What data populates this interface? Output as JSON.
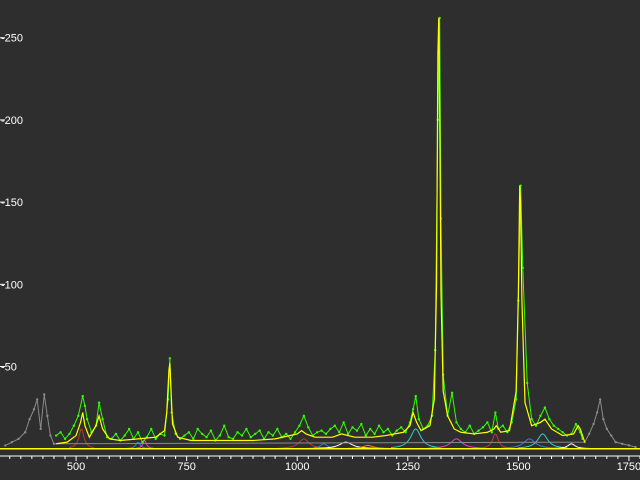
{
  "chart_data": {
    "type": "line",
    "title": "",
    "xlabel": "",
    "ylabel": "",
    "xlim": [
      328,
      1775
    ],
    "ylim": [
      -2,
      262
    ],
    "xticks": [
      500,
      750,
      1000,
      1250,
      1500,
      1750
    ],
    "xtick_labels": [
      "500",
      "750",
      "1000",
      "1250",
      "1500",
      "1750"
    ],
    "yticks": [
      250,
      200,
      150,
      100,
      50
    ],
    "ytick_labels": [
      "-250",
      "-200",
      "-150",
      "-100",
      "-50"
    ],
    "grid": false,
    "background": "#2e2e2e",
    "baseline": 0,
    "baseline_color": "#ffff00",
    "series": [
      {
        "role": "excluded-data",
        "color": "#8a8a8a",
        "x": [
          340,
          355,
          370,
          385,
          395,
          405,
          412,
          420,
          428,
          435,
          442,
          450,
          1650,
          1660,
          1670,
          1678,
          1685,
          1692,
          1700,
          1710,
          1720,
          1735,
          1750,
          1765
        ],
        "y": [
          2,
          4,
          6,
          10,
          18,
          24,
          30,
          12,
          33,
          20,
          8,
          3,
          4,
          9,
          15,
          22,
          30,
          18,
          12,
          8,
          4,
          3,
          2,
          1
        ]
      },
      {
        "role": "data",
        "color": "#33ff00",
        "x": [
          455,
          465,
          475,
          485,
          495,
          505,
          515,
          520,
          525,
          535,
          545,
          552,
          560,
          570,
          580,
          590,
          600,
          610,
          620,
          630,
          640,
          650,
          660,
          670,
          680,
          690,
          700,
          708,
          712,
          716,
          725,
          735,
          745,
          755,
          765,
          775,
          785,
          795,
          805,
          815,
          825,
          835,
          845,
          855,
          865,
          875,
          885,
          895,
          905,
          915,
          925,
          935,
          945,
          955,
          965,
          975,
          985,
          995,
          1005,
          1015,
          1025,
          1035,
          1045,
          1055,
          1065,
          1075,
          1085,
          1095,
          1105,
          1115,
          1125,
          1135,
          1145,
          1155,
          1165,
          1175,
          1185,
          1195,
          1205,
          1215,
          1225,
          1235,
          1245,
          1255,
          1262,
          1268,
          1275,
          1285,
          1295,
          1305,
          1312,
          1318,
          1322,
          1325,
          1330,
          1340,
          1350,
          1360,
          1370,
          1380,
          1390,
          1400,
          1410,
          1420,
          1430,
          1440,
          1448,
          1455,
          1465,
          1475,
          1485,
          1495,
          1500,
          1505,
          1510,
          1520,
          1530,
          1540,
          1550,
          1560,
          1570,
          1580,
          1590,
          1600,
          1610,
          1620,
          1630,
          1640,
          1645
        ],
        "y": [
          8,
          10,
          6,
          9,
          14,
          20,
          32,
          26,
          18,
          10,
          14,
          28,
          18,
          7,
          6,
          9,
          5,
          8,
          12,
          6,
          10,
          4,
          7,
          12,
          6,
          9,
          8,
          30,
          55,
          22,
          9,
          6,
          8,
          10,
          6,
          12,
          9,
          7,
          11,
          5,
          8,
          14,
          7,
          6,
          10,
          8,
          12,
          7,
          9,
          11,
          6,
          10,
          8,
          12,
          7,
          9,
          6,
          10,
          14,
          20,
          13,
          8,
          10,
          11,
          9,
          12,
          14,
          10,
          16,
          9,
          13,
          11,
          15,
          8,
          12,
          9,
          14,
          10,
          12,
          8,
          11,
          13,
          10,
          16,
          24,
          32,
          18,
          12,
          14,
          20,
          60,
          200,
          262,
          140,
          45,
          20,
          34,
          16,
          12,
          10,
          14,
          9,
          11,
          13,
          16,
          10,
          22,
          12,
          14,
          10,
          16,
          30,
          90,
          160,
          110,
          40,
          18,
          14,
          20,
          25,
          18,
          14,
          12,
          10,
          8,
          9,
          15,
          10,
          6
        ]
      },
      {
        "role": "fit",
        "color": "#ffff00",
        "x": [
          455,
          480,
          500,
          510,
          515,
          520,
          530,
          545,
          552,
          560,
          575,
          600,
          640,
          680,
          700,
          705,
          710,
          712,
          714,
          718,
          730,
          760,
          800,
          850,
          900,
          950,
          1000,
          1010,
          1020,
          1040,
          1080,
          1100,
          1130,
          1170,
          1200,
          1240,
          1255,
          1262,
          1270,
          1280,
          1300,
          1310,
          1315,
          1318,
          1320,
          1322,
          1325,
          1330,
          1340,
          1355,
          1370,
          1400,
          1430,
          1445,
          1450,
          1460,
          1480,
          1495,
          1500,
          1503,
          1505,
          1508,
          1515,
          1530,
          1550,
          1560,
          1575,
          1600,
          1625,
          1635,
          1640,
          1650
        ],
        "y": [
          3,
          4,
          8,
          16,
          22,
          14,
          7,
          14,
          20,
          12,
          6,
          5,
          6,
          7,
          11,
          22,
          48,
          52,
          40,
          15,
          7,
          5,
          5,
          5,
          5,
          6,
          9,
          11,
          9,
          7,
          7,
          9,
          7,
          7,
          8,
          10,
          14,
          22,
          16,
          11,
          14,
          30,
          100,
          240,
          262,
          210,
          95,
          35,
          20,
          12,
          10,
          9,
          10,
          12,
          14,
          10,
          11,
          35,
          95,
          160,
          150,
          90,
          28,
          14,
          16,
          18,
          12,
          8,
          9,
          14,
          12,
          4
        ]
      }
    ]
  }
}
